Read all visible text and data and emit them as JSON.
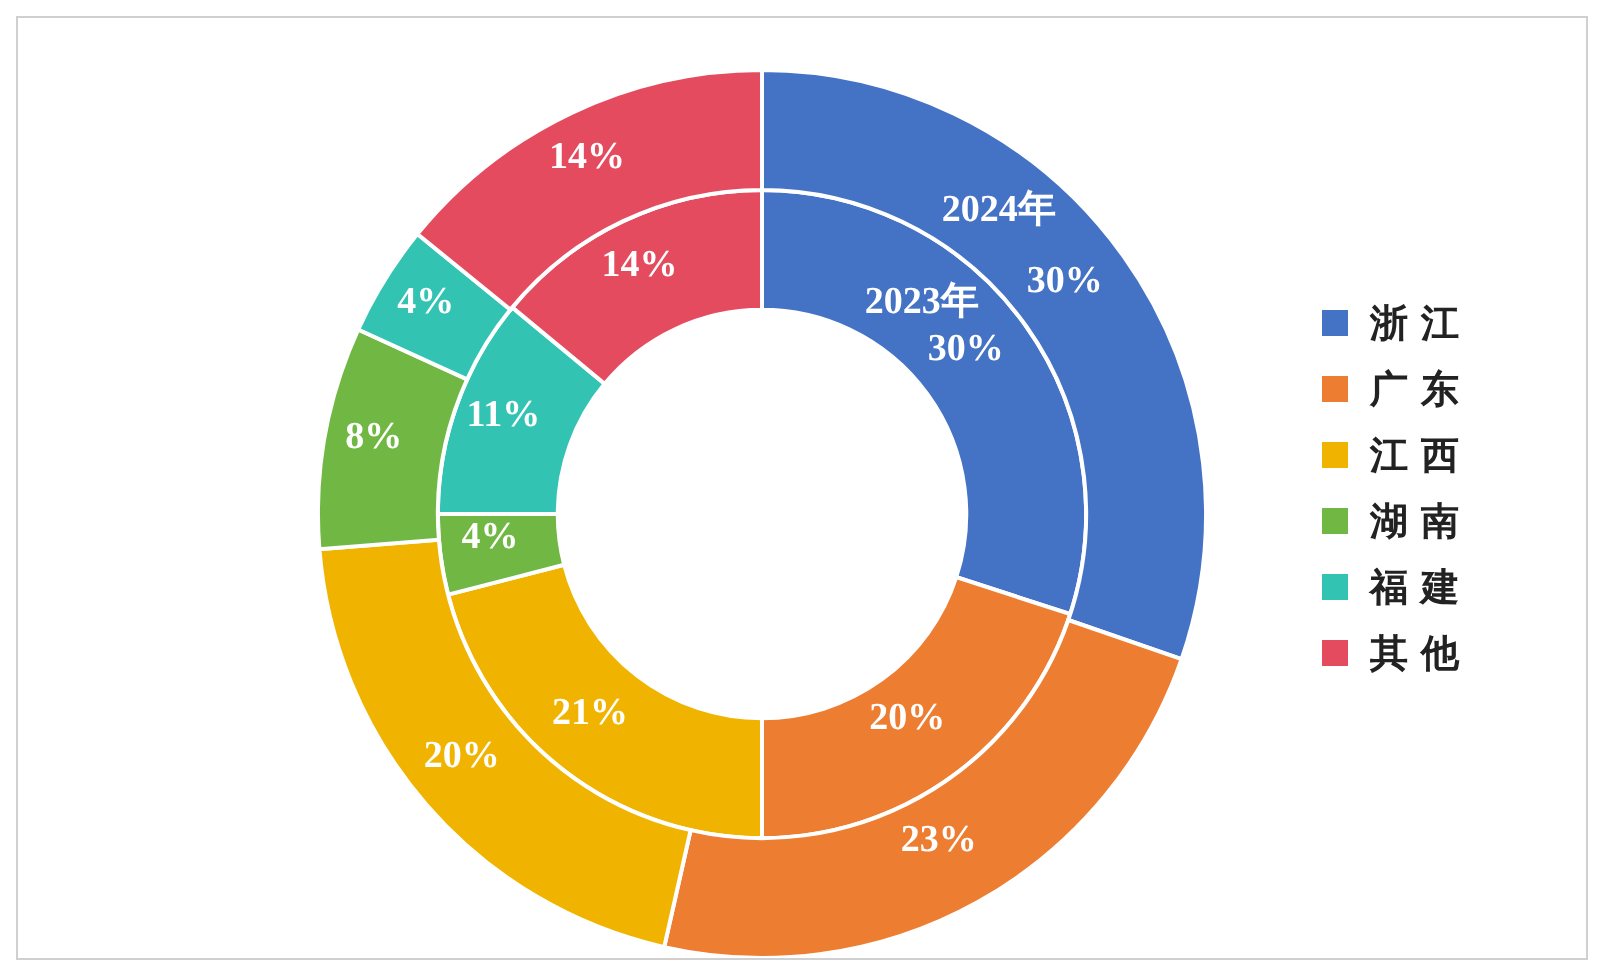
{
  "chart_data": {
    "type": "donut",
    "categories": [
      "浙 江",
      "广 东",
      "江 西",
      "湖 南",
      "福 建",
      "其 他"
    ],
    "colors": [
      "#4472c4",
      "#ed7d31",
      "#f0b400",
      "#70b843",
      "#33c3b3",
      "#e54b5e"
    ],
    "series": [
      {
        "name": "2023年",
        "values": [
          30,
          20,
          21,
          4,
          11,
          14
        ],
        "value_labels": [
          "30%",
          "20%",
          "21%",
          "4%",
          "11%",
          "14%"
        ]
      },
      {
        "name": "2024年",
        "values": [
          30,
          23,
          20,
          8,
          4,
          14
        ],
        "value_labels": [
          "30%",
          "23%",
          "20%",
          "8%",
          "4%",
          "14%"
        ]
      }
    ],
    "legend": "right"
  }
}
